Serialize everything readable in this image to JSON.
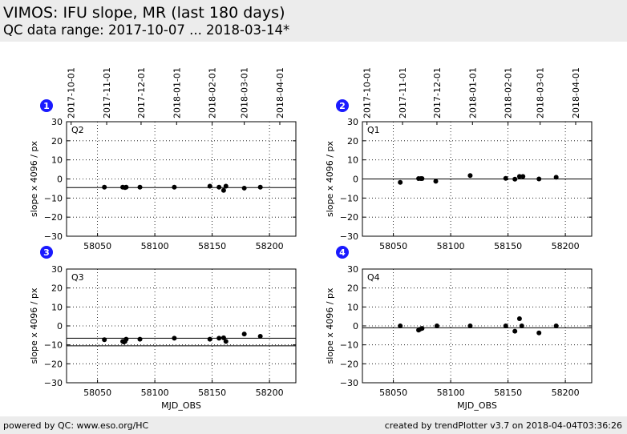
{
  "header": {
    "title": "VIMOS: IFU slope, MR (last 180 days)",
    "subtitle": "QC data range: 2017-10-07 ... 2018-03-14*"
  },
  "footer": {
    "left": "powered by QC: www.eso.org/HC",
    "right": "created by trendPlotter v3.7 on 2018-04-04T03:36:26"
  },
  "chart_data": [
    {
      "type": "scatter",
      "badge": "1",
      "label": "Q2",
      "ylabel": "slope x 4096 / px",
      "xlabel": "",
      "xlim": [
        58023,
        58223
      ],
      "ylim": [
        -30,
        30
      ],
      "yticks": [
        30,
        20,
        10,
        0,
        -10,
        -20,
        -30
      ],
      "xticks": [
        58050,
        58100,
        58150,
        58200
      ],
      "date_ticks": [
        {
          "label": "2017-10-01",
          "x": 58027
        },
        {
          "label": "2017-11-01",
          "x": 58058
        },
        {
          "label": "2017-12-01",
          "x": 58088
        },
        {
          "label": "2018-01-01",
          "x": 58119
        },
        {
          "label": "2018-02-01",
          "x": 58150
        },
        {
          "label": "2018-03-01",
          "x": 58178
        },
        {
          "label": "2018-04-01",
          "x": 58209
        }
      ],
      "grid": true,
      "ref_lines": [
        -4.5
      ],
      "x": [
        58056,
        58072,
        58074,
        58075,
        58087,
        58117,
        58148,
        58156,
        58160,
        58162,
        58178,
        58192
      ],
      "y": [
        -4.3,
        -4.3,
        -4.5,
        -4.3,
        -4.3,
        -4.3,
        -3.8,
        -4.3,
        -6.0,
        -3.8,
        -4.8,
        -4.3
      ]
    },
    {
      "type": "scatter",
      "badge": "2",
      "label": "Q1",
      "ylabel": "slope x 4096 / px",
      "xlabel": "",
      "xlim": [
        58023,
        58223
      ],
      "ylim": [
        -30,
        30
      ],
      "yticks": [
        30,
        20,
        10,
        0,
        -10,
        -20,
        -30
      ],
      "xticks": [
        58050,
        58100,
        58150,
        58200
      ],
      "date_ticks": [
        {
          "label": "2017-10-01",
          "x": 58027
        },
        {
          "label": "2017-11-01",
          "x": 58058
        },
        {
          "label": "2017-12-01",
          "x": 58088
        },
        {
          "label": "2018-01-01",
          "x": 58119
        },
        {
          "label": "2018-02-01",
          "x": 58150
        },
        {
          "label": "2018-03-01",
          "x": 58178
        },
        {
          "label": "2018-04-01",
          "x": 58209
        }
      ],
      "grid": true,
      "ref_lines": [
        0
      ],
      "x": [
        58056,
        58072,
        58074,
        58075,
        58087,
        58117,
        58148,
        58156,
        58160,
        58163,
        58177,
        58192
      ],
      "y": [
        -1.8,
        0.2,
        0.2,
        0.2,
        -1.2,
        1.8,
        0.3,
        -0.1,
        1.3,
        1.3,
        0.0,
        0.9
      ]
    },
    {
      "type": "scatter",
      "badge": "3",
      "label": "Q3",
      "ylabel": "slope x 4096 / px",
      "xlabel": "MJD_OBS",
      "xlim": [
        58023,
        58223
      ],
      "ylim": [
        -30,
        30
      ],
      "yticks": [
        30,
        20,
        10,
        0,
        -10,
        -20,
        -30
      ],
      "xticks": [
        58050,
        58100,
        58150,
        58200
      ],
      "date_ticks": [],
      "grid": true,
      "ref_lines": [
        -6.5,
        -10.5
      ],
      "x": [
        58056,
        58072,
        58073,
        58074,
        58075,
        58087,
        58117,
        58148,
        58156,
        58160,
        58162,
        58178,
        58192
      ],
      "y": [
        -7.3,
        -8.2,
        -8.5,
        -8.2,
        -7.0,
        -7.0,
        -6.5,
        -7.0,
        -6.5,
        -6.3,
        -8.2,
        -4.3,
        -5.5
      ]
    },
    {
      "type": "scatter",
      "badge": "4",
      "label": "Q4",
      "ylabel": "slope x 4096 / px",
      "xlabel": "MJD_OBS",
      "xlim": [
        58023,
        58223
      ],
      "ylim": [
        -30,
        30
      ],
      "yticks": [
        30,
        20,
        10,
        0,
        -10,
        -20,
        -30
      ],
      "xticks": [
        58050,
        58100,
        58150,
        58200
      ],
      "date_ticks": [],
      "grid": true,
      "ref_lines": [
        -1.0
      ],
      "x": [
        58056,
        58072,
        58073,
        58075,
        58088,
        58117,
        58148,
        58156,
        58160,
        58162,
        58177,
        58192
      ],
      "y": [
        0.0,
        -2.2,
        -1.8,
        -1.3,
        0.0,
        0.0,
        0.0,
        -2.8,
        3.8,
        0.0,
        -3.7,
        0.0
      ]
    }
  ],
  "colors": {
    "header_bg": "#ececec",
    "badge": "#1a1aff",
    "points": "#000000"
  }
}
